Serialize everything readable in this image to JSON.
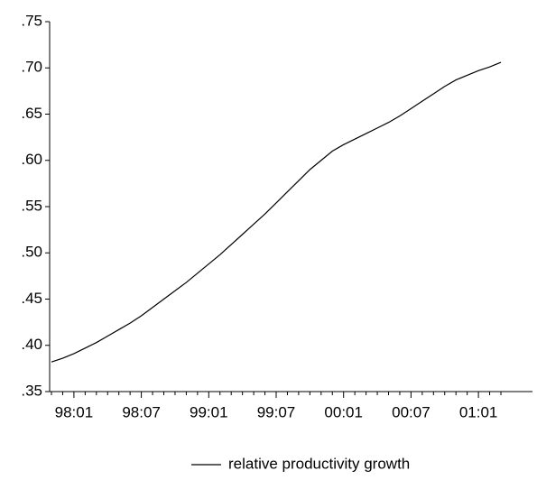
{
  "chart_data": {
    "type": "line",
    "categories": [
      null,
      null,
      "98:01",
      null,
      null,
      null,
      null,
      null,
      "98:07",
      null,
      null,
      null,
      null,
      null,
      "99:01",
      null,
      null,
      null,
      null,
      null,
      "99:07",
      null,
      null,
      null,
      null,
      null,
      "00:01",
      null,
      null,
      null,
      null,
      null,
      "00:07",
      null,
      null,
      null,
      null,
      null,
      "01:01",
      null,
      null
    ],
    "series": [
      {
        "name": "relative productivity growth",
        "color": "#000000",
        "values": [
          0.382,
          0.386,
          0.391,
          0.397,
          0.403,
          0.41,
          0.417,
          0.424,
          0.432,
          0.441,
          0.45,
          0.459,
          0.468,
          0.478,
          0.488,
          0.498,
          0.509,
          0.52,
          0.531,
          0.542,
          0.554,
          0.566,
          0.578,
          0.59,
          0.6,
          0.61,
          0.617,
          0.623,
          0.629,
          0.635,
          0.641,
          0.648,
          0.656,
          0.664,
          0.672,
          0.68,
          0.687,
          0.692,
          0.697,
          0.701,
          0.706
        ]
      }
    ],
    "ylim": [
      0.35,
      0.75
    ],
    "yticks": [
      {
        "value": 0.35,
        "label": ".35"
      },
      {
        "value": 0.4,
        "label": ".40"
      },
      {
        "value": 0.45,
        "label": ".45"
      },
      {
        "value": 0.5,
        "label": ".50"
      },
      {
        "value": 0.55,
        "label": ".55"
      },
      {
        "value": 0.6,
        "label": ".60"
      },
      {
        "value": 0.65,
        "label": ".65"
      },
      {
        "value": 0.7,
        "label": ".70"
      },
      {
        "value": 0.75,
        "label": ".75"
      }
    ],
    "grid": false,
    "legend": "bottom"
  }
}
